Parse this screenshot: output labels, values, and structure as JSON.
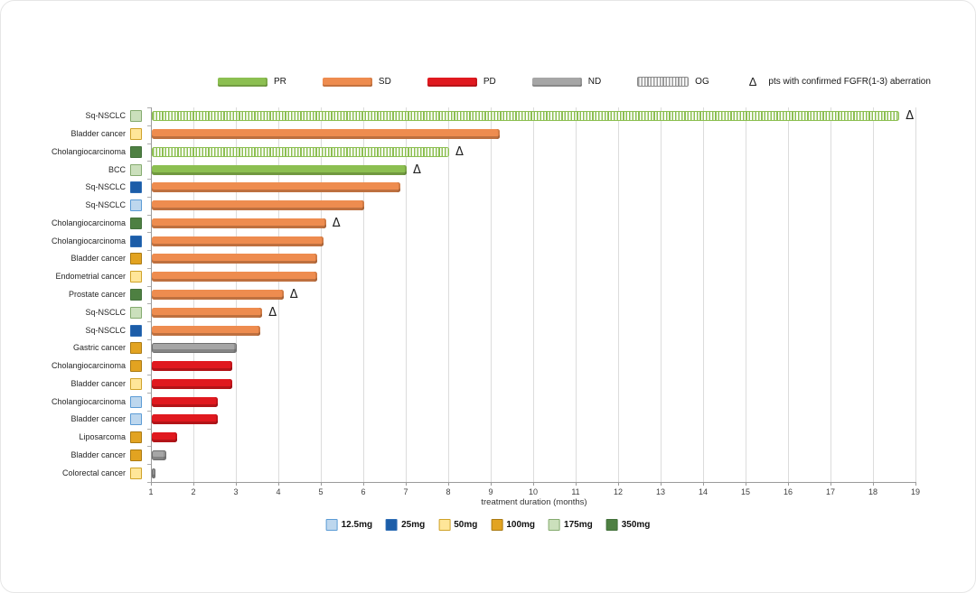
{
  "chart_data": {
    "type": "bar",
    "orientation": "horizontal",
    "xlabel": "treatment duration (months)",
    "xlim": [
      1,
      19
    ],
    "x_ticks": [
      1,
      2,
      3,
      4,
      5,
      6,
      7,
      8,
      9,
      10,
      11,
      12,
      13,
      14,
      15,
      16,
      17,
      18,
      19
    ],
    "grid": true,
    "status_legend": [
      {
        "code": "PR",
        "color": "#8cbf51"
      },
      {
        "code": "SD",
        "color": "#ee8c4f"
      },
      {
        "code": "PD",
        "color": "#e0191f"
      },
      {
        "code": "ND",
        "color": "#a6a6a6"
      },
      {
        "code": "OG",
        "color": "#9a9a9a",
        "hatched": true
      }
    ],
    "delta_note": {
      "symbol": "Δ",
      "text": "pts with confirmed FGFR(1-3) aberration"
    },
    "dose_legend": [
      {
        "label": "12.5mg",
        "fill": "#bdd7ee",
        "border": "#5b9bd5"
      },
      {
        "label": "25mg",
        "fill": "#1c5da8",
        "border": "#2e6db5"
      },
      {
        "label": "50mg",
        "fill": "#ffe699",
        "border": "#cfa228"
      },
      {
        "label": "100mg",
        "fill": "#e2a321",
        "border": "#aa7a12"
      },
      {
        "label": "175mg",
        "fill": "#cbe0bc",
        "border": "#84aa6e"
      },
      {
        "label": "350mg",
        "fill": "#4e8042",
        "border": "#42703a"
      }
    ],
    "rows": [
      {
        "label": "Sq-NSCLC",
        "dose": "175mg",
        "status": "PR",
        "ongoing": true,
        "end": 18.6,
        "delta": true
      },
      {
        "label": "Bladder cancer",
        "dose": "50mg",
        "status": "SD",
        "ongoing": false,
        "end": 9.2,
        "delta": false
      },
      {
        "label": "Cholangiocarcinoma",
        "dose": "350mg",
        "status": "PR",
        "ongoing": true,
        "end": 8.0,
        "delta": true
      },
      {
        "label": "BCC",
        "dose": "175mg",
        "status": "PR",
        "ongoing": false,
        "end": 7.0,
        "delta": true
      },
      {
        "label": "Sq-NSCLC",
        "dose": "25mg",
        "status": "SD",
        "ongoing": false,
        "end": 6.85,
        "delta": false
      },
      {
        "label": "Sq-NSCLC",
        "dose": "12.5mg",
        "status": "SD",
        "ongoing": false,
        "end": 6.0,
        "delta": false
      },
      {
        "label": "Cholangiocarcinoma",
        "dose": "350mg",
        "status": "SD",
        "ongoing": false,
        "end": 5.1,
        "delta": true
      },
      {
        "label": "Cholangiocarcinoma",
        "dose": "25mg",
        "status": "SD",
        "ongoing": false,
        "end": 5.05,
        "delta": false
      },
      {
        "label": "Bladder cancer",
        "dose": "100mg",
        "status": "SD",
        "ongoing": false,
        "end": 4.9,
        "delta": false
      },
      {
        "label": "Endometrial cancer",
        "dose": "50mg",
        "status": "SD",
        "ongoing": false,
        "end": 4.9,
        "delta": false
      },
      {
        "label": "Prostate cancer",
        "dose": "350mg",
        "status": "SD",
        "ongoing": false,
        "end": 4.1,
        "delta": true
      },
      {
        "label": "Sq-NSCLC",
        "dose": "175mg",
        "status": "SD",
        "ongoing": false,
        "end": 3.6,
        "delta": true
      },
      {
        "label": "Sq-NSCLC",
        "dose": "25mg",
        "status": "SD",
        "ongoing": false,
        "end": 3.55,
        "delta": false
      },
      {
        "label": "Gastric cancer",
        "dose": "100mg",
        "status": "ND",
        "ongoing": false,
        "end": 3.0,
        "delta": false
      },
      {
        "label": "Cholangiocarcinoma",
        "dose": "100mg",
        "status": "PD",
        "ongoing": false,
        "end": 2.9,
        "delta": false
      },
      {
        "label": "Bladder cancer",
        "dose": "50mg",
        "status": "PD",
        "ongoing": false,
        "end": 2.9,
        "delta": false
      },
      {
        "label": "Cholangiocarcinoma",
        "dose": "12.5mg",
        "status": "PD",
        "ongoing": false,
        "end": 2.55,
        "delta": false
      },
      {
        "label": "Bladder cancer",
        "dose": "12.5mg",
        "status": "PD",
        "ongoing": false,
        "end": 2.55,
        "delta": false
      },
      {
        "label": "Liposarcoma",
        "dose": "100mg",
        "status": "PD",
        "ongoing": false,
        "end": 1.6,
        "delta": false
      },
      {
        "label": "Bladder cancer",
        "dose": "100mg",
        "status": "ND",
        "ongoing": false,
        "end": 1.35,
        "delta": false
      },
      {
        "label": "Colorectal cancer",
        "dose": "50mg",
        "status": "ND",
        "ongoing": false,
        "end": 1.08,
        "delta": false
      }
    ]
  }
}
